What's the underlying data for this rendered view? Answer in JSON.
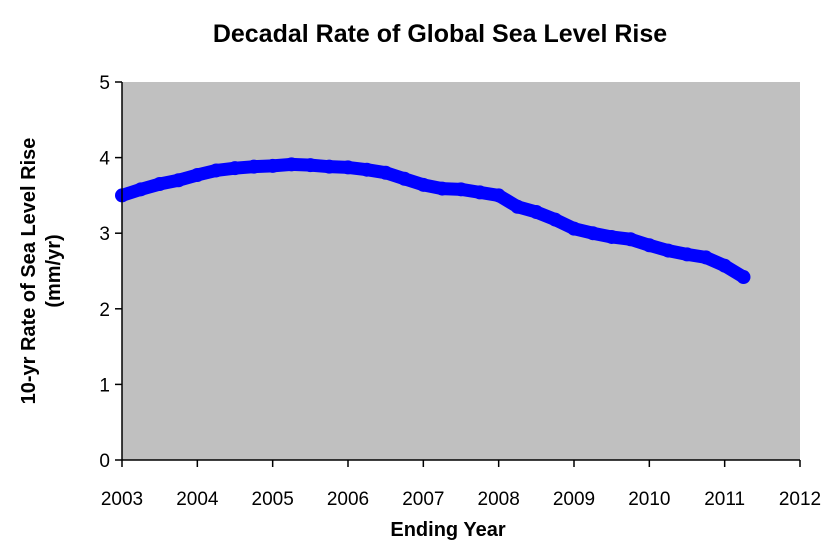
{
  "chart_data": {
    "type": "scatter",
    "title": "Decadal Rate of Global Sea Level Rise",
    "xlabel": "Ending Year",
    "ylabel": "10-yr Rate of Sea Level Rise",
    "ylabel_unit": "(mm/yr)",
    "xlim": [
      2003,
      2012
    ],
    "ylim": [
      0,
      5
    ],
    "x_ticks": [
      "2003",
      "2004",
      "2005",
      "2006",
      "2007",
      "2008",
      "2009",
      "2010",
      "2011",
      "2012"
    ],
    "y_ticks": [
      "0",
      "1",
      "2",
      "3",
      "4",
      "5"
    ],
    "grid": false,
    "background": "#c0c0c0",
    "series": [
      {
        "color": "#0000ff",
        "points": [
          [
            2003.0,
            3.5
          ],
          [
            2003.25,
            3.58
          ],
          [
            2003.5,
            3.65
          ],
          [
            2003.75,
            3.7
          ],
          [
            2004.0,
            3.77
          ],
          [
            2004.25,
            3.83
          ],
          [
            2004.5,
            3.86
          ],
          [
            2004.75,
            3.88
          ],
          [
            2005.0,
            3.89
          ],
          [
            2005.25,
            3.91
          ],
          [
            2005.5,
            3.9
          ],
          [
            2005.75,
            3.88
          ],
          [
            2006.0,
            3.87
          ],
          [
            2006.25,
            3.84
          ],
          [
            2006.5,
            3.8
          ],
          [
            2006.75,
            3.72
          ],
          [
            2007.0,
            3.64
          ],
          [
            2007.25,
            3.59
          ],
          [
            2007.5,
            3.58
          ],
          [
            2007.75,
            3.54
          ],
          [
            2008.0,
            3.5
          ],
          [
            2008.25,
            3.35
          ],
          [
            2008.5,
            3.28
          ],
          [
            2008.75,
            3.18
          ],
          [
            2009.0,
            3.06
          ],
          [
            2009.25,
            3.0
          ],
          [
            2009.5,
            2.95
          ],
          [
            2009.75,
            2.92
          ],
          [
            2010.0,
            2.84
          ],
          [
            2010.25,
            2.77
          ],
          [
            2010.5,
            2.72
          ],
          [
            2010.75,
            2.68
          ],
          [
            2011.0,
            2.57
          ],
          [
            2011.25,
            2.42
          ]
        ]
      }
    ]
  }
}
